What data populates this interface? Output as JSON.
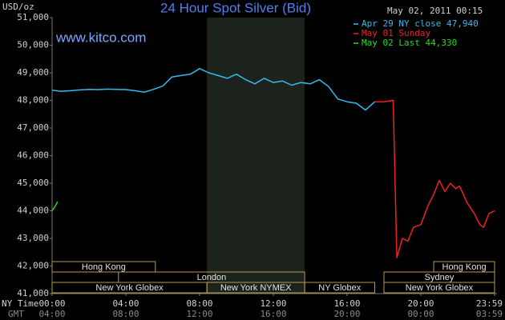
{
  "chart_data": {
    "type": "line",
    "title": "24 Hour Spot Silver (Bid)",
    "timestamp": "May 02, 2011 00:15",
    "watermark": "www.kitco.com",
    "ylabel": "USD/oz",
    "x_row_labels": [
      "NY Time",
      "GMT"
    ],
    "xlim": [
      0,
      24
    ],
    "xticks": [
      {
        "value": 0,
        "label": "00:00"
      },
      {
        "value": 4,
        "label": "04:00"
      },
      {
        "value": 8,
        "label": "08:00"
      },
      {
        "value": 12,
        "label": "12:00"
      },
      {
        "value": 16,
        "label": "16:00"
      },
      {
        "value": 20,
        "label": "20:00"
      },
      {
        "value": 24,
        "label": "23:59"
      }
    ],
    "gmt_tick_labels": [
      "04:00",
      "08:00",
      "12:00",
      "16:00",
      "20:00",
      "00:00",
      "03:59"
    ],
    "ylim": [
      41000,
      51000
    ],
    "yticks": [
      {
        "value": 41000,
        "label": "41,000"
      },
      {
        "value": 42000,
        "label": "42,000"
      },
      {
        "value": 43000,
        "label": "43,000"
      },
      {
        "value": 44000,
        "label": "44,000"
      },
      {
        "value": 45000,
        "label": "45,000"
      },
      {
        "value": 46000,
        "label": "46,000"
      },
      {
        "value": 47000,
        "label": "47,000"
      },
      {
        "value": 48000,
        "label": "48,000"
      },
      {
        "value": 49000,
        "label": "49,000"
      },
      {
        "value": 50000,
        "label": "50,000"
      },
      {
        "value": 51000,
        "label": "51,000"
      }
    ],
    "series": [
      {
        "name": "Apr 29 NY close 47,940",
        "color": "#33bbee",
        "x": [
          0,
          0.5,
          1,
          1.5,
          2,
          2.5,
          3,
          3.5,
          4,
          4.5,
          5,
          5.5,
          6,
          6.5,
          7,
          7.5,
          8,
          8.5,
          9,
          9.5,
          10,
          10.5,
          11,
          11.5,
          12,
          12.5,
          13,
          13.5,
          14,
          14.5,
          15,
          15.5,
          16,
          16.5,
          17,
          17.5
        ],
        "values": [
          48370,
          48330,
          48350,
          48380,
          48400,
          48390,
          48410,
          48400,
          48390,
          48350,
          48300,
          48400,
          48520,
          48850,
          48900,
          48950,
          49150,
          49000,
          48900,
          48800,
          48950,
          48750,
          48600,
          48800,
          48650,
          48700,
          48550,
          48650,
          48600,
          48750,
          48500,
          48050,
          47950,
          47900,
          47650,
          47950
        ]
      },
      {
        "name": "May 01 Sunday",
        "color": "#ee2222",
        "x": [
          17.5,
          18,
          18.5,
          18.7,
          19,
          19.3,
          19.6,
          20,
          20.4,
          20.7,
          21,
          21.3,
          21.6,
          21.9,
          22.1,
          22.5,
          22.9,
          23.2,
          23.4,
          23.7,
          24
        ],
        "values": [
          47950,
          47950,
          48000,
          42300,
          43000,
          42900,
          43400,
          43500,
          44200,
          44600,
          45100,
          44700,
          45000,
          44800,
          44900,
          44300,
          43900,
          43500,
          43400,
          43900,
          44000
        ]
      },
      {
        "name": "May 02 Last 44,330",
        "color": "#22dd22",
        "x": [
          0,
          0.15,
          0.3
        ],
        "values": [
          44000,
          44150,
          44330
        ]
      }
    ],
    "sessions": [
      [
        {
          "label": "Hong Kong",
          "start": 0,
          "end": 5.6
        },
        {
          "label": "Hong Kong",
          "start": 20.7,
          "end": 24
        }
      ],
      [
        {
          "label": "London",
          "start": 3.6,
          "end": 13.7
        },
        {
          "label": "Sydney",
          "start": 18,
          "end": 24
        }
      ],
      [
        {
          "label": "New York Globex",
          "start": 0,
          "end": 8.4
        },
        {
          "label": "New York NYMEX",
          "start": 8.4,
          "end": 13.7,
          "highlight": true
        },
        {
          "label": "NY Globex",
          "start": 13.7,
          "end": 17.5
        },
        {
          "label": "New York Globex",
          "start": 18,
          "end": 24
        }
      ]
    ]
  }
}
